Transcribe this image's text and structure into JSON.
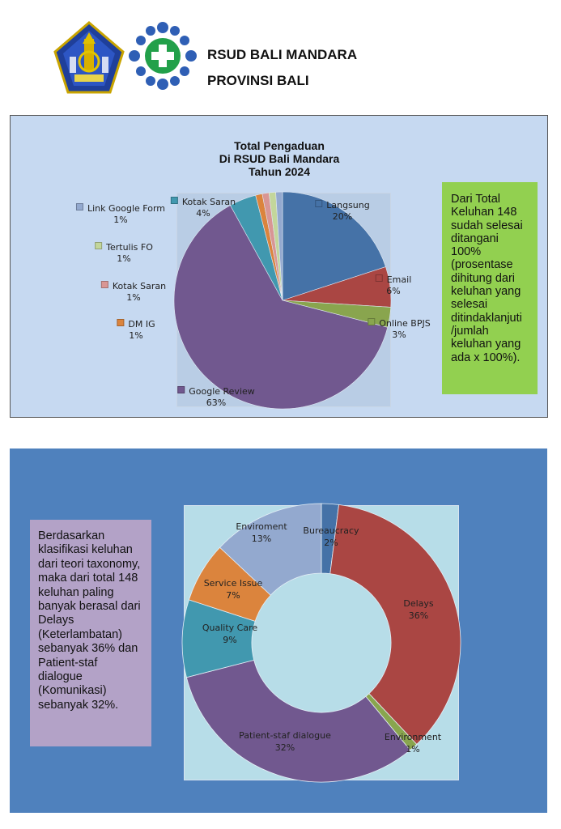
{
  "header": {
    "org_name": "RSUD BALI MANDARA",
    "region": "PROVINSI BALI",
    "logo1_icon": "bali-province-emblem-icon",
    "logo2_icon": "hospital-cross-logo-icon"
  },
  "panel1": {
    "note": "Dari Total Keluhan 148 sudah selesai ditangani 100% (prosentase dihitung dari keluhan yang selesai ditindaklanjuti /jumlah keluhan yang ada x 100%)."
  },
  "panel2": {
    "note": "Berdasarkan klasifikasi keluhan dari teori taxonomy,  maka dari total 148 keluhan paling banyak berasal dari Delays (Keterlambatan) sebanyak 36% dan Patient-staf dialogue (Komunikasi) sebanyak 32%."
  },
  "chart_data": [
    {
      "type": "pie",
      "title_lines": [
        "Total Pengaduan",
        "Di RSUD Bali Mandara",
        "Tahun 2024"
      ],
      "categories": [
        "Langsung",
        "Email",
        "Online BPJS",
        "Google Review",
        "Kotak Saran",
        "DM IG",
        "Kotak Saran",
        "Tertulis FO",
        "Link Google Form"
      ],
      "values": [
        20,
        6,
        3,
        63,
        4,
        1,
        1,
        1,
        1
      ],
      "value_labels": [
        "20%",
        "6%",
        "3%",
        "63%",
        "4%",
        "1%",
        "1%",
        "1%",
        "1%"
      ],
      "colors": [
        "#4572a7",
        "#aa4643",
        "#89a54e",
        "#71588f",
        "#4198af",
        "#db843d",
        "#d99694",
        "#c3d69b",
        "#93a9cf"
      ],
      "legend": "labels-with-swatches"
    },
    {
      "type": "pie",
      "variant": "donut",
      "categories": [
        "Bureaucracy",
        "Delays",
        "Environment",
        "Patient-staf dialogue",
        "Quality Care",
        "Service Issue",
        "Enviroment"
      ],
      "values": [
        2,
        36,
        1,
        32,
        9,
        7,
        13
      ],
      "value_labels": [
        "2%",
        "36%",
        "1%",
        "32%",
        "9%",
        "7%",
        "13%"
      ],
      "colors": [
        "#4572a7",
        "#aa4643",
        "#89a54e",
        "#71588f",
        "#4198af",
        "#db843d",
        "#93a9cf"
      ]
    }
  ]
}
